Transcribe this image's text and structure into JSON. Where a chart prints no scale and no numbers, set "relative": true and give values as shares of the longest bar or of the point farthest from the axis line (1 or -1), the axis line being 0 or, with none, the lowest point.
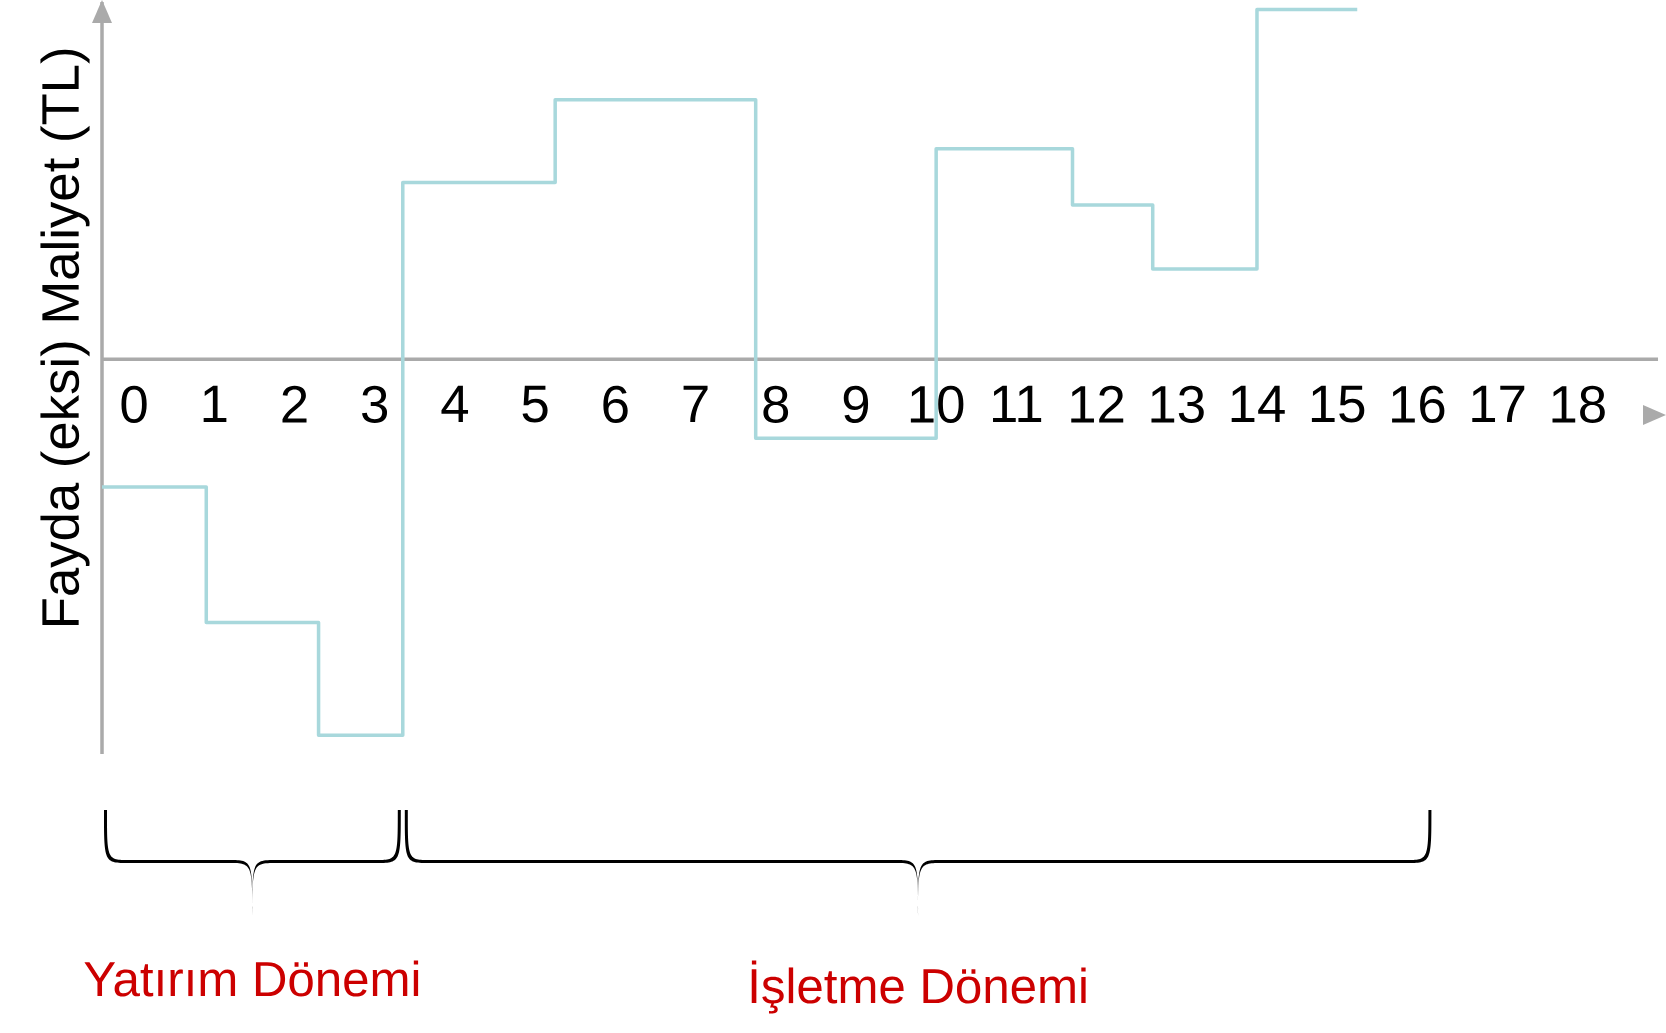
{
  "chart_data": {
    "type": "step",
    "relative": true,
    "ylabel": "Fayda (eksi) Maliyet (TL)",
    "xlim": [
      -0.4,
      19
    ],
    "xticks": [
      0,
      1,
      2,
      3,
      4,
      5,
      6,
      7,
      8,
      9,
      10,
      11,
      12,
      13,
      14,
      15,
      16,
      17,
      18
    ],
    "x": [
      -0.4,
      0.9,
      2.3,
      3.35,
      5.25,
      7.75,
      10,
      11.7,
      12.7,
      14,
      15.25
    ],
    "values": [
      -0.34,
      -0.7,
      -1,
      0.47,
      0.69,
      -0.21,
      0.56,
      0.41,
      0.24,
      0.93,
      0.93
    ],
    "color": "#a8d8dc",
    "annotations": [
      "Yatırım Dönemi",
      "İşletme Dönemi"
    ]
  }
}
